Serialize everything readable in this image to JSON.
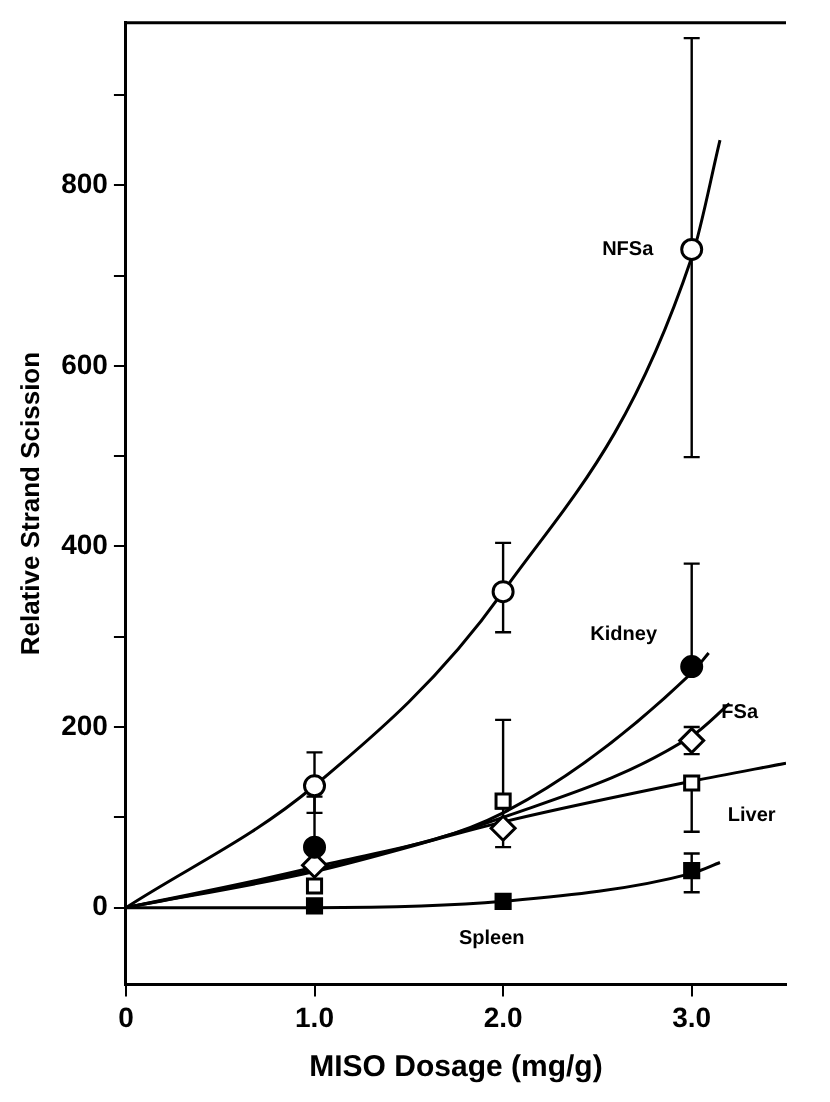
{
  "chart_data": {
    "type": "scatter",
    "xlabel": "MISO Dosage (mg/g)",
    "ylabel": "Relative Strand Scission",
    "xlim": [
      0,
      3.5
    ],
    "ylim": [
      -85,
      980
    ],
    "xticks": [
      0,
      {
        "value": 1,
        "label": "1.0"
      },
      {
        "value": 2,
        "label": "2.0"
      },
      {
        "value": 3,
        "label": "3.0"
      }
    ],
    "yticks": [
      0,
      {
        "value": 100,
        "label": null
      },
      200,
      {
        "value": 300,
        "label": null
      },
      400,
      {
        "value": 500,
        "label": null
      },
      600,
      {
        "value": 700,
        "label": null
      },
      800,
      {
        "value": 900,
        "label": null
      }
    ],
    "grid": false,
    "legend": false,
    "series": [
      {
        "name": "NFSa",
        "marker": "circle",
        "color": "#ffffff",
        "x": [
          1,
          2,
          3
        ],
        "values": [
          135,
          350,
          729
        ],
        "errors": [
          [
            105,
            172
          ],
          [
            305,
            404
          ],
          [
            499,
            963
          ]
        ]
      },
      {
        "name": "Kidney",
        "marker": "circle",
        "color": "#000000",
        "x": [
          1,
          3
        ],
        "values": [
          67,
          267
        ],
        "errors": [
          [
            67,
            123
          ],
          [
            267,
            381
          ]
        ]
      },
      {
        "name": "FSa",
        "marker": "diamond",
        "color": "#ffffff",
        "x": [
          1,
          2,
          3
        ],
        "values": [
          47,
          88,
          185
        ],
        "errors": [
          null,
          [
            67,
            110
          ],
          [
            170,
            200
          ]
        ]
      },
      {
        "name": "Liver",
        "marker": "square",
        "color": "#ffffff",
        "x": [
          1,
          2,
          3
        ],
        "values": [
          24,
          118,
          138
        ],
        "errors": [
          null,
          [
            118,
            208
          ],
          [
            84,
            138
          ]
        ]
      },
      {
        "name": "Spleen",
        "marker": "square",
        "color": "#000000",
        "x": [
          1,
          2,
          3
        ],
        "values": [
          2,
          7,
          41
        ],
        "errors": [
          null,
          null,
          [
            17,
            60
          ]
        ]
      },
      {
        "type": "line",
        "marker": "none",
        "color": "#000000",
        "x": [
          0,
          1,
          2,
          3,
          3.15
        ],
        "values": [
          0,
          135,
          350,
          720,
          850
        ]
      },
      {
        "type": "line",
        "marker": "none",
        "color": "#000000",
        "x": [
          0,
          1,
          2,
          3,
          3.09
        ],
        "values": [
          0,
          45,
          105,
          260,
          282
        ]
      },
      {
        "type": "line",
        "marker": "none",
        "color": "#000000",
        "x": [
          0,
          1,
          2,
          3,
          3.2
        ],
        "values": [
          0,
          42,
          100,
          190,
          226
        ]
      },
      {
        "type": "line",
        "marker": "none",
        "color": "#000000",
        "x": [
          0,
          1,
          2,
          3,
          3.5
        ],
        "values": [
          0,
          40,
          95,
          140,
          160
        ]
      },
      {
        "type": "line",
        "marker": "none",
        "color": "#000000",
        "x": [
          0,
          1,
          2,
          3,
          3.15
        ],
        "values": [
          0,
          0,
          7,
          38,
          50
        ]
      }
    ]
  }
}
